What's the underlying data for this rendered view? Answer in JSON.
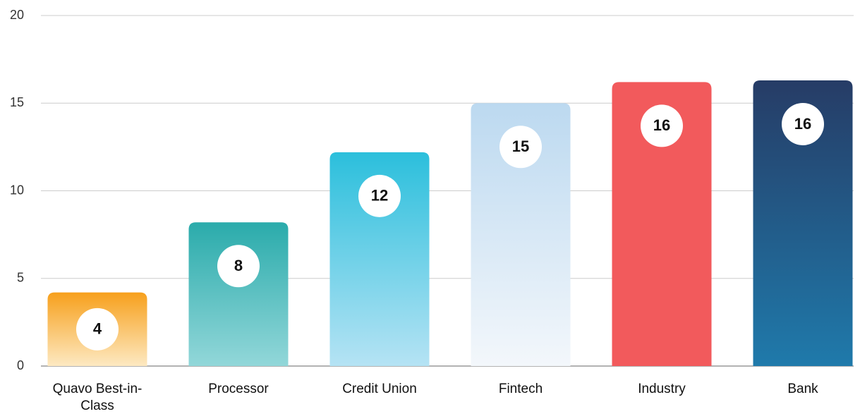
{
  "chart_data": {
    "type": "bar",
    "categories": [
      "Quavo Best-in-Class",
      "Processor",
      "Credit Union",
      "Fintech",
      "Industry",
      "Bank"
    ],
    "values": [
      4.2,
      8.2,
      12.2,
      15,
      16.2,
      16.3
    ],
    "value_labels": [
      "4",
      "8",
      "12",
      "15",
      "16",
      "16"
    ],
    "colors": [
      [
        "#f7a01c",
        "#fde9c2"
      ],
      [
        "#2aabab",
        "#92d7d9"
      ],
      [
        "#2bbfdc",
        "#b5e3f4"
      ],
      [
        "#bcd9f0",
        "#f3f7fb"
      ],
      [
        "#f25a5c",
        "#f25a5c"
      ],
      [
        "#263c66",
        "#1f7aab"
      ]
    ],
    "ylim": [
      0,
      20
    ],
    "yticks": [
      0,
      5,
      10,
      15,
      20
    ],
    "grid": true
  }
}
